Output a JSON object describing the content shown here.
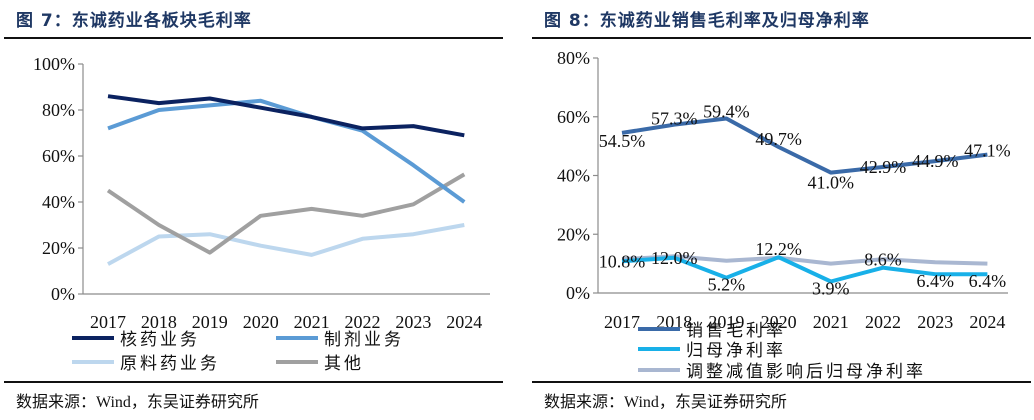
{
  "source_text": "数据来源：Wind，东吴证券研究所",
  "chart_data": [
    {
      "type": "line",
      "figure_label": "图 7：",
      "title": "东诚药业各板块毛利率",
      "categories": [
        "2017",
        "2018",
        "2019",
        "2020",
        "2021",
        "2022",
        "2023",
        "2024"
      ],
      "y_ticks": [
        "0%",
        "20%",
        "40%",
        "60%",
        "80%",
        "100%"
      ],
      "ylim": [
        0,
        100
      ],
      "xlabel": "",
      "ylabel": "",
      "grid": false,
      "legend_position": "bottom",
      "series": [
        {
          "name": "核药业务",
          "color": "#0b2260",
          "values": [
            86,
            83,
            85,
            81,
            77,
            72,
            73,
            69
          ]
        },
        {
          "name": "制剂业务",
          "color": "#5b9bd5",
          "values": [
            72,
            80,
            82,
            84,
            77,
            71,
            56,
            40
          ]
        },
        {
          "name": "原料药业务",
          "color": "#bdd7ee",
          "values": [
            13,
            25,
            26,
            21,
            17,
            24,
            26,
            30
          ]
        },
        {
          "name": "其他",
          "color": "#a0a0a0",
          "values": [
            45,
            30,
            18,
            34,
            37,
            34,
            39,
            52
          ]
        }
      ]
    },
    {
      "type": "line",
      "figure_label": "图 8：",
      "title": "东诚药业销售毛利率及归母净利率",
      "categories": [
        "2017",
        "2018",
        "2019",
        "2020",
        "2021",
        "2022",
        "2023",
        "2024"
      ],
      "y_ticks": [
        "0%",
        "20%",
        "40%",
        "60%",
        "80%"
      ],
      "ylim": [
        0,
        80
      ],
      "xlabel": "",
      "ylabel": "",
      "grid": false,
      "legend_position": "bottom",
      "series": [
        {
          "name": "销售毛利率",
          "color": "#3a6aa8",
          "values": [
            54.5,
            57.3,
            59.4,
            49.7,
            41.0,
            42.9,
            44.9,
            47.1
          ],
          "labels": [
            "54.5%",
            "57.3%",
            "59.4%",
            "49.7%",
            "41.0%",
            "42.9%",
            "44.9%",
            "47.1%"
          ]
        },
        {
          "name": "归母净利率",
          "color": "#18b0e8",
          "values": [
            10.8,
            12.0,
            5.2,
            12.2,
            3.9,
            8.6,
            6.4,
            6.4
          ],
          "labels": [
            "10.8%",
            "12.0%",
            "5.2%",
            "12.2%",
            "3.9%",
            "8.6%",
            "6.4%",
            "6.4%"
          ]
        },
        {
          "name": "调整减值影响后归母净利率",
          "color": "#a9b7d1",
          "values": [
            11.5,
            12.5,
            11.0,
            12.0,
            10.0,
            11.5,
            10.5,
            10.0
          ]
        }
      ]
    }
  ]
}
